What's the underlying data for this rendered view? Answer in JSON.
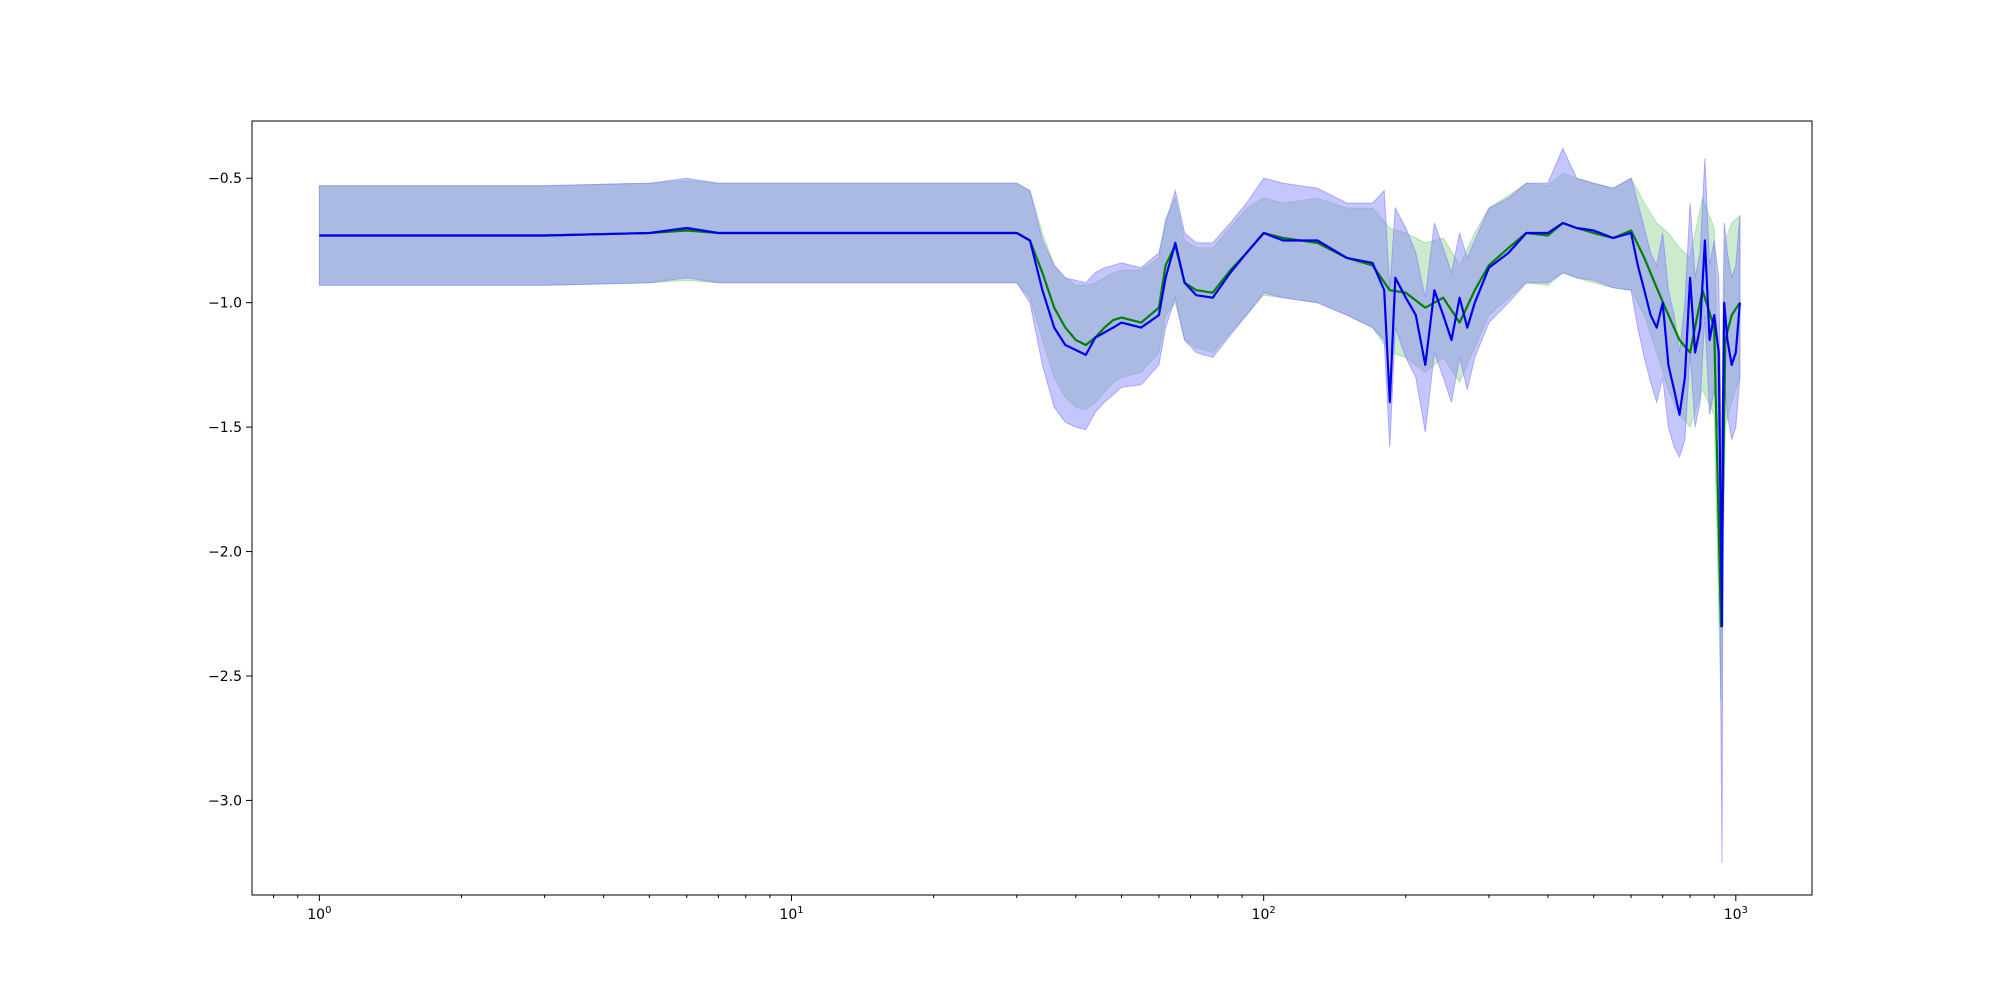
{
  "chart_data": {
    "type": "line",
    "title": "",
    "xlabel": "",
    "ylabel": "",
    "x_scale": "log",
    "xlim": [
      0.72,
      1450
    ],
    "ylim": [
      -3.38,
      -0.27
    ],
    "x_ticks": [
      {
        "value": 1,
        "label": "10^0"
      },
      {
        "value": 10,
        "label": "10^1"
      },
      {
        "value": 100,
        "label": "10^2"
      },
      {
        "value": 1000,
        "label": "10^3"
      }
    ],
    "y_ticks": [
      {
        "value": -0.5,
        "label": "−0.5"
      },
      {
        "value": -1.0,
        "label": "−1.0"
      },
      {
        "value": -1.5,
        "label": "−1.5"
      },
      {
        "value": -2.0,
        "label": "−2.0"
      },
      {
        "value": -2.5,
        "label": "−2.5"
      },
      {
        "value": -3.0,
        "label": "−3.0"
      }
    ],
    "grid": false,
    "legend": "none",
    "colors": {
      "green_line": "#008000",
      "blue_line": "#0000ee",
      "green_band": "#8fd08f",
      "blue_band": "#8080ff",
      "overlap_band": "#a2b4d6",
      "band_edge": "#5a7ab0"
    },
    "series": [
      {
        "line_color": "#008000",
        "band_color": "#8fd08f",
        "x": [
          1,
          3,
          5,
          6,
          7,
          10,
          20,
          30,
          32,
          34,
          36,
          38,
          40,
          42,
          44,
          46,
          48,
          50,
          55,
          60,
          62,
          65,
          68,
          72,
          78,
          85,
          92,
          100,
          110,
          130,
          150,
          170,
          185,
          200,
          220,
          240,
          260,
          280,
          300,
          330,
          360,
          400,
          430,
          460,
          500,
          550,
          600,
          640,
          680,
          720,
          760,
          800,
          850,
          900,
          930,
          950,
          980,
          1020
        ],
        "y": [
          -0.73,
          -0.73,
          -0.72,
          -0.71,
          -0.72,
          -0.72,
          -0.72,
          -0.72,
          -0.75,
          -0.88,
          -1.02,
          -1.1,
          -1.15,
          -1.17,
          -1.14,
          -1.1,
          -1.07,
          -1.06,
          -1.08,
          -1.02,
          -0.85,
          -0.77,
          -0.92,
          -0.95,
          -0.96,
          -0.87,
          -0.8,
          -0.72,
          -0.74,
          -0.76,
          -0.82,
          -0.85,
          -0.95,
          -0.96,
          -1.02,
          -0.98,
          -1.08,
          -0.95,
          -0.85,
          -0.78,
          -0.72,
          -0.73,
          -0.68,
          -0.7,
          -0.72,
          -0.74,
          -0.71,
          -0.82,
          -0.94,
          -1.05,
          -1.15,
          -1.2,
          -0.95,
          -1.1,
          -2.3,
          -1.15,
          -1.05,
          -1.0
        ],
        "lower": [
          -0.93,
          -0.93,
          -0.92,
          -0.91,
          -0.92,
          -0.92,
          -0.92,
          -0.92,
          -0.98,
          -1.15,
          -1.3,
          -1.38,
          -1.42,
          -1.43,
          -1.4,
          -1.36,
          -1.32,
          -1.3,
          -1.28,
          -1.2,
          -1.05,
          -1.0,
          -1.15,
          -1.18,
          -1.2,
          -1.12,
          -1.05,
          -0.97,
          -0.98,
          -1.0,
          -1.05,
          -1.1,
          -1.2,
          -1.22,
          -1.28,
          -1.22,
          -1.32,
          -1.18,
          -1.05,
          -0.98,
          -0.92,
          -0.93,
          -0.88,
          -0.9,
          -0.92,
          -0.94,
          -0.95,
          -1.05,
          -1.2,
          -1.35,
          -1.45,
          -1.5,
          -1.35,
          -1.45,
          -2.6,
          -1.5,
          -1.4,
          -1.3
        ],
        "upper": [
          -0.53,
          -0.53,
          -0.52,
          -0.51,
          -0.52,
          -0.52,
          -0.52,
          -0.52,
          -0.55,
          -0.72,
          -0.85,
          -0.9,
          -0.93,
          -0.93,
          -0.92,
          -0.9,
          -0.88,
          -0.87,
          -0.87,
          -0.82,
          -0.66,
          -0.58,
          -0.75,
          -0.78,
          -0.78,
          -0.7,
          -0.62,
          -0.58,
          -0.6,
          -0.58,
          -0.62,
          -0.62,
          -0.7,
          -0.72,
          -0.76,
          -0.74,
          -0.85,
          -0.72,
          -0.62,
          -0.57,
          -0.52,
          -0.53,
          -0.48,
          -0.5,
          -0.52,
          -0.54,
          -0.5,
          -0.6,
          -0.68,
          -0.72,
          -0.78,
          -0.82,
          -0.58,
          -0.7,
          -1.8,
          -0.75,
          -0.68,
          -0.65
        ]
      },
      {
        "line_color": "#0000ee",
        "band_color": "#8080ff",
        "x": [
          1,
          3,
          5,
          6,
          7,
          10,
          20,
          30,
          32,
          34,
          36,
          38,
          40,
          42,
          44,
          46,
          48,
          50,
          55,
          60,
          62,
          65,
          68,
          72,
          78,
          85,
          92,
          100,
          110,
          130,
          150,
          170,
          180,
          185,
          190,
          200,
          210,
          220,
          230,
          240,
          250,
          260,
          270,
          280,
          300,
          330,
          360,
          400,
          430,
          460,
          500,
          550,
          600,
          620,
          640,
          660,
          680,
          700,
          720,
          740,
          760,
          780,
          800,
          820,
          840,
          860,
          880,
          900,
          920,
          935,
          940,
          945,
          960,
          980,
          1000,
          1020
        ],
        "y": [
          -0.73,
          -0.73,
          -0.72,
          -0.7,
          -0.72,
          -0.72,
          -0.72,
          -0.72,
          -0.75,
          -0.95,
          -1.1,
          -1.17,
          -1.19,
          -1.21,
          -1.14,
          -1.12,
          -1.1,
          -1.08,
          -1.1,
          -1.05,
          -0.9,
          -0.76,
          -0.92,
          -0.97,
          -0.98,
          -0.88,
          -0.8,
          -0.72,
          -0.75,
          -0.75,
          -0.82,
          -0.84,
          -0.95,
          -1.4,
          -0.9,
          -0.98,
          -1.05,
          -1.25,
          -0.95,
          -1.05,
          -1.15,
          -0.98,
          -1.1,
          -1.0,
          -0.86,
          -0.8,
          -0.72,
          -0.72,
          -0.68,
          -0.7,
          -0.71,
          -0.74,
          -0.72,
          -0.85,
          -0.95,
          -1.05,
          -1.1,
          -1.0,
          -1.25,
          -1.35,
          -1.45,
          -1.3,
          -0.9,
          -1.2,
          -1.1,
          -0.75,
          -1.15,
          -1.05,
          -1.2,
          -2.3,
          -1.4,
          -1.0,
          -1.15,
          -1.25,
          -1.2,
          -1.0
        ],
        "lower": [
          -0.93,
          -0.93,
          -0.92,
          -0.9,
          -0.92,
          -0.92,
          -0.92,
          -0.92,
          -1.0,
          -1.25,
          -1.42,
          -1.48,
          -1.5,
          -1.51,
          -1.44,
          -1.4,
          -1.37,
          -1.34,
          -1.33,
          -1.25,
          -1.1,
          -0.98,
          -1.15,
          -1.2,
          -1.22,
          -1.13,
          -1.05,
          -0.96,
          -0.98,
          -1.0,
          -1.05,
          -1.1,
          -1.15,
          -1.58,
          -1.1,
          -1.22,
          -1.3,
          -1.52,
          -1.2,
          -1.3,
          -1.4,
          -1.22,
          -1.35,
          -1.22,
          -1.08,
          -1.0,
          -0.92,
          -0.92,
          -0.88,
          -0.9,
          -0.91,
          -0.94,
          -0.95,
          -1.1,
          -1.22,
          -1.32,
          -1.4,
          -1.3,
          -1.5,
          -1.58,
          -1.62,
          -1.55,
          -1.2,
          -1.5,
          -1.4,
          -1.05,
          -1.45,
          -1.35,
          -1.52,
          -3.25,
          -1.7,
          -1.3,
          -1.45,
          -1.55,
          -1.5,
          -1.3
        ],
        "upper": [
          -0.53,
          -0.53,
          -0.52,
          -0.5,
          -0.52,
          -0.52,
          -0.52,
          -0.52,
          -0.55,
          -0.75,
          -0.85,
          -0.9,
          -0.91,
          -0.92,
          -0.88,
          -0.86,
          -0.85,
          -0.84,
          -0.86,
          -0.8,
          -0.68,
          -0.55,
          -0.72,
          -0.76,
          -0.76,
          -0.68,
          -0.6,
          -0.5,
          -0.52,
          -0.54,
          -0.6,
          -0.6,
          -0.55,
          -0.95,
          -0.62,
          -0.7,
          -0.8,
          -0.98,
          -0.68,
          -0.78,
          -0.88,
          -0.72,
          -0.82,
          -0.75,
          -0.62,
          -0.58,
          -0.52,
          -0.52,
          -0.38,
          -0.5,
          -0.52,
          -0.54,
          -0.5,
          -0.6,
          -0.7,
          -0.8,
          -0.85,
          -0.72,
          -0.95,
          -1.05,
          -1.2,
          -1.0,
          -0.6,
          -0.9,
          -0.8,
          -0.42,
          -0.85,
          -0.75,
          -0.9,
          -1.7,
          -1.0,
          -0.68,
          -0.8,
          -0.9,
          -0.85,
          -0.65
        ]
      }
    ]
  }
}
